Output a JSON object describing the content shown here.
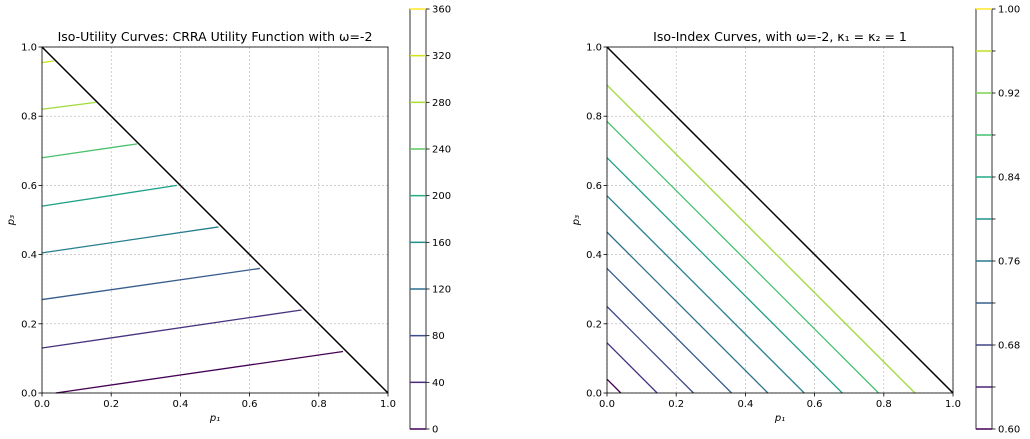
{
  "chart_data": [
    {
      "type": "line",
      "subtype": "contour",
      "title": "Iso-Utility Curves: CRRA Utility Function with ω=-2",
      "xlabel": "p₁",
      "ylabel": "p₃",
      "xlim": [
        0.0,
        1.0
      ],
      "ylim": [
        0.0,
        1.0
      ],
      "x_ticks": [
        "0.0",
        "0.2",
        "0.4",
        "0.6",
        "0.8",
        "1.0"
      ],
      "y_ticks": [
        "0.0",
        "0.2",
        "0.4",
        "0.6",
        "0.8",
        "1.0"
      ],
      "grid": true,
      "boundary": [
        [
          0,
          1
        ],
        [
          1,
          0
        ]
      ],
      "series": [
        {
          "level": 0,
          "color": "#440154",
          "points": [
            [
              0.04,
              0.0
            ],
            [
              0.87,
              0.12
            ]
          ]
        },
        {
          "level": 40,
          "color": "#46327e",
          "points": [
            [
              0.0,
              0.13
            ],
            [
              0.75,
              0.24
            ]
          ]
        },
        {
          "level": 80,
          "color": "#365c8d",
          "points": [
            [
              0.0,
              0.27
            ],
            [
              0.63,
              0.36
            ]
          ]
        },
        {
          "level": 120,
          "color": "#277f8e",
          "points": [
            [
              0.0,
              0.405
            ],
            [
              0.51,
              0.48
            ]
          ]
        },
        {
          "level": 160,
          "color": "#1fa187",
          "points": [
            [
              0.0,
              0.54
            ],
            [
              0.39,
              0.6
            ]
          ]
        },
        {
          "level": 200,
          "color": "#4ac16d",
          "points": [
            [
              0.0,
              0.68
            ],
            [
              0.275,
              0.72
            ]
          ]
        },
        {
          "level": 240,
          "color": "#a0da39",
          "points": [
            [
              0.0,
              0.82
            ],
            [
              0.155,
              0.84
            ]
          ]
        },
        {
          "level": 280,
          "color": "#cde11d",
          "points": [
            [
              0.0,
              0.955
            ],
            [
              0.035,
              0.96
            ]
          ]
        }
      ],
      "colorbar": {
        "vmin": 0,
        "vmax": 360,
        "labels": [
          "0",
          "40",
          "80",
          "120",
          "160",
          "200",
          "240",
          "280",
          "320",
          "360"
        ],
        "levels": [
          0,
          40,
          80,
          120,
          160,
          200,
          240,
          280,
          320,
          360
        ],
        "colors": [
          "#440154",
          "#472c7a",
          "#3b518b",
          "#2c718e",
          "#21908d",
          "#27ad81",
          "#5cc863",
          "#aadc32",
          "#d2e21b",
          "#fde725"
        ]
      }
    },
    {
      "type": "line",
      "subtype": "contour",
      "title": "Iso-Index Curves, with ω=-2, κ₁ = κ₂ = 1",
      "xlabel": "p₁",
      "ylabel": "p₃",
      "xlim": [
        0.0,
        1.0
      ],
      "ylim": [
        0.0,
        1.0
      ],
      "x_ticks": [
        "0.0",
        "0.2",
        "0.4",
        "0.6",
        "0.8",
        "1.0"
      ],
      "y_ticks": [
        "0.0",
        "0.2",
        "0.4",
        "0.6",
        "0.8",
        "1.0"
      ],
      "grid": true,
      "boundary": [
        [
          0,
          1
        ],
        [
          1,
          0
        ]
      ],
      "series": [
        {
          "level": 0.62,
          "color": "#440154",
          "points": [
            [
              0.0,
              0.04
            ],
            [
              0.04,
              0.0
            ]
          ]
        },
        {
          "level": 0.64,
          "color": "#46327e",
          "points": [
            [
              0.0,
              0.145
            ],
            [
              0.145,
              0.0
            ]
          ]
        },
        {
          "level": 0.66,
          "color": "#3f4889",
          "points": [
            [
              0.0,
              0.25
            ],
            [
              0.25,
              0.0
            ]
          ]
        },
        {
          "level": 0.68,
          "color": "#365c8d",
          "points": [
            [
              0.0,
              0.36
            ],
            [
              0.36,
              0.0
            ]
          ]
        },
        {
          "level": 0.7,
          "color": "#2e6e8e",
          "points": [
            [
              0.0,
              0.465
            ],
            [
              0.465,
              0.0
            ]
          ]
        },
        {
          "level": 0.72,
          "color": "#277f8e",
          "points": [
            [
              0.0,
              0.57
            ],
            [
              0.57,
              0.0
            ]
          ]
        },
        {
          "level": 0.74,
          "color": "#1fa187",
          "points": [
            [
              0.0,
              0.68
            ],
            [
              0.68,
              0.0
            ]
          ]
        },
        {
          "level": 0.76,
          "color": "#4ac16d",
          "points": [
            [
              0.0,
              0.785
            ],
            [
              0.785,
              0.0
            ]
          ]
        },
        {
          "level": 0.78,
          "color": "#a0da39",
          "points": [
            [
              0.0,
              0.89
            ],
            [
              0.89,
              0.0
            ]
          ]
        }
      ],
      "colorbar": {
        "vmin": 0.6,
        "vmax": 1.0,
        "labels": [
          "0.60",
          "",
          "0.68",
          "",
          "0.76",
          "",
          "0.84",
          "",
          "0.92",
          "",
          "1.00"
        ],
        "levels": [
          0.6,
          0.64,
          0.68,
          0.72,
          0.76,
          0.8,
          0.84,
          0.88,
          0.92,
          0.96,
          1.0
        ],
        "colors": [
          "#440154",
          "#482475",
          "#414487",
          "#355f8d",
          "#2a788e",
          "#21918c",
          "#22a884",
          "#44bf70",
          "#7ad151",
          "#bddf26",
          "#fde725"
        ]
      }
    }
  ]
}
